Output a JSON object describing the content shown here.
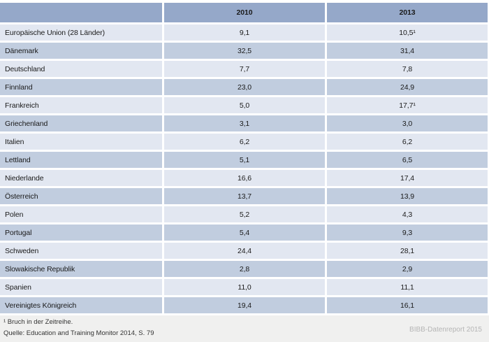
{
  "table": {
    "columns": [
      "",
      "2010",
      "2013"
    ],
    "rows": [
      {
        "label": "Europäische Union (28 Länder)",
        "v2010": "9,1",
        "v2013": "10,5¹"
      },
      {
        "label": "Dänemark",
        "v2010": "32,5",
        "v2013": "31,4"
      },
      {
        "label": "Deutschland",
        "v2010": "7,7",
        "v2013": "7,8"
      },
      {
        "label": "Finnland",
        "v2010": "23,0",
        "v2013": "24,9"
      },
      {
        "label": "Frankreich",
        "v2010": "5,0",
        "v2013": "17,7¹"
      },
      {
        "label": "Griechenland",
        "v2010": "3,1",
        "v2013": "3,0"
      },
      {
        "label": "Italien",
        "v2010": "6,2",
        "v2013": "6,2"
      },
      {
        "label": "Lettland",
        "v2010": "5,1",
        "v2013": "6,5"
      },
      {
        "label": "Niederlande",
        "v2010": "16,6",
        "v2013": "17,4"
      },
      {
        "label": "Österreich",
        "v2010": "13,7",
        "v2013": "13,9"
      },
      {
        "label": "Polen",
        "v2010": "5,2",
        "v2013": "4,3"
      },
      {
        "label": "Portugal",
        "v2010": "5,4",
        "v2013": "9,3"
      },
      {
        "label": "Schweden",
        "v2010": "24,4",
        "v2013": "28,1"
      },
      {
        "label": "Slowakische Republik",
        "v2010": "2,8",
        "v2013": "2,9"
      },
      {
        "label": "Spanien",
        "v2010": "11,0",
        "v2013": "11,1"
      },
      {
        "label": "Vereinigtes Königreich",
        "v2010": "19,4",
        "v2013": "16,1"
      }
    ]
  },
  "footer": {
    "footnote": "¹ Bruch in der Zeitreihe.",
    "source": "Quelle: Education and Training Monitor 2014, S. 79",
    "watermark": "BIBB-Datenreport 2015"
  },
  "colors": {
    "header_bg": "#95a8c9",
    "row_dark_bg": "#c1cddf",
    "row_light_bg": "#e2e7f1",
    "footer_bg": "#f0f0ef",
    "text": "#1a1a1a",
    "watermark_text": "#b5b5b5"
  }
}
